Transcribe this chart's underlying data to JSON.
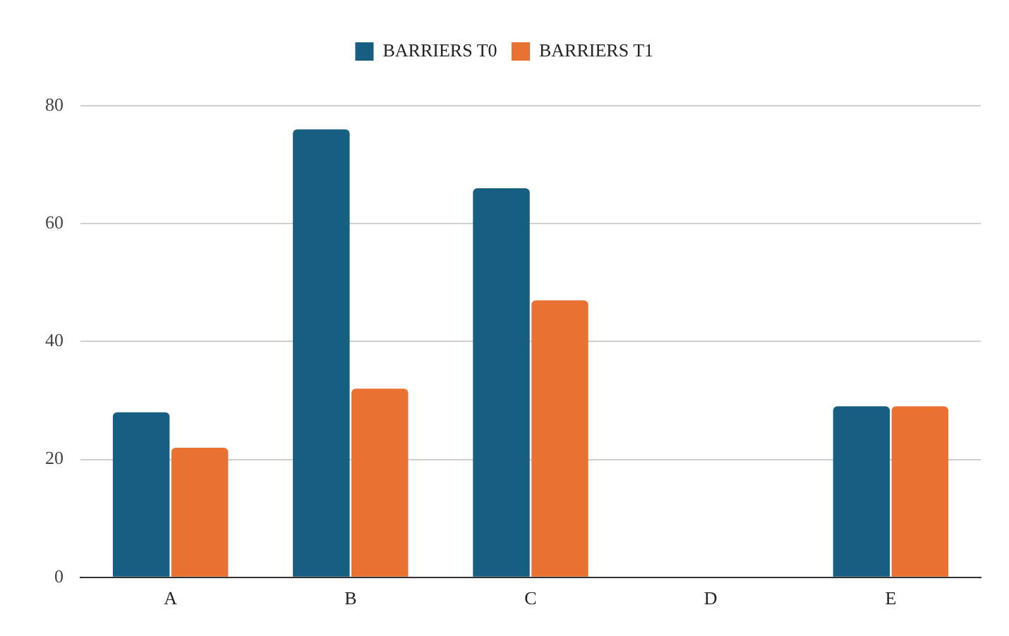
{
  "chart_data": {
    "type": "bar",
    "categories": [
      "A",
      "B",
      "C",
      "D",
      "E"
    ],
    "series": [
      {
        "name": "BARRIERS T0",
        "color": "#175e83",
        "values": [
          28,
          76,
          66,
          0,
          29
        ]
      },
      {
        "name": "BARRIERS T1",
        "color": "#e97132",
        "values": [
          22,
          32,
          47,
          0,
          29
        ]
      }
    ],
    "ylim": [
      0,
      80
    ],
    "yticks": [
      0,
      20,
      40,
      60,
      80
    ],
    "grid": "y",
    "legend": "top"
  }
}
